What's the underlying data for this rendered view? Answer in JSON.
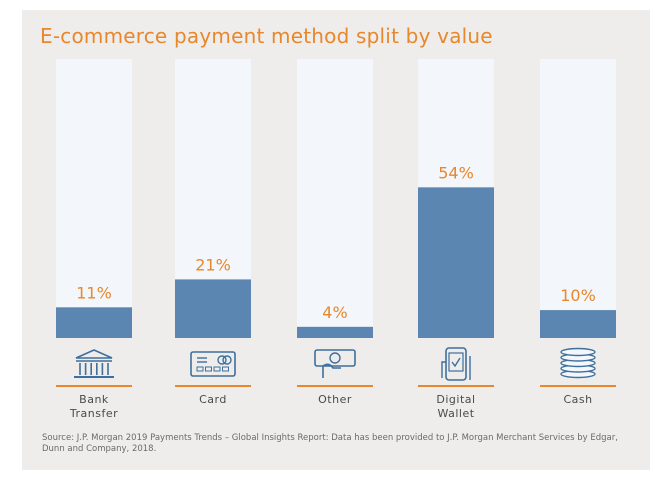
{
  "title": "E-commerce payment method split by value",
  "chart_data": {
    "type": "bar",
    "title": "E-commerce payment method split by value",
    "categories": [
      "Bank Transfer",
      "Card",
      "Other",
      "Digital Wallet",
      "Cash"
    ],
    "category_lines": [
      [
        "Bank",
        "Transfer"
      ],
      [
        "Card"
      ],
      [
        "Other"
      ],
      [
        "Digital",
        "Wallet"
      ],
      [
        "Cash"
      ]
    ],
    "values": [
      11,
      21,
      4,
      54,
      10
    ],
    "value_labels": [
      "11%",
      "21%",
      "4%",
      "54%",
      "10%"
    ],
    "ylim": [
      0,
      100
    ],
    "unit": "%",
    "icons": [
      "bank-building-icon",
      "credit-card-icon",
      "cheque-hand-icon",
      "mobile-wallet-icon",
      "coin-stack-icon"
    ]
  },
  "colors": {
    "bar_fill": "#5a86b1",
    "track_fill": "#f3f7fb",
    "accent": "#e8872b",
    "background": "#eeedeb",
    "icon": "#3f6f9c"
  },
  "source": "Source: J.P. Morgan 2019 Payments Trends – Global Insights Report: Data has been provided to J.P. Morgan Merchant Services by Edgar, Dunn and Company, 2018."
}
